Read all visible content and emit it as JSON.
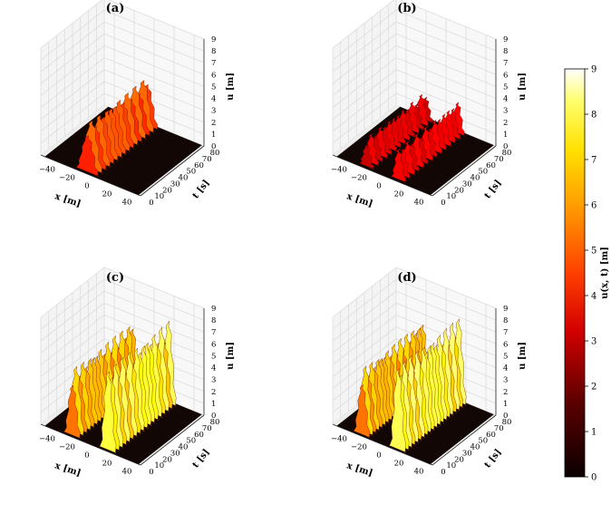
{
  "colors": {
    "background": "#ffffff",
    "grid": "#d9d9d9",
    "pane": "#f4f4f4",
    "floor": "#120704"
  },
  "colorbar": {
    "label": "u(x, t) [m]",
    "ticks": [
      "0",
      "1",
      "2",
      "3",
      "4",
      "5",
      "6",
      "7",
      "8",
      "9"
    ],
    "range": [
      0,
      9
    ],
    "colormap": "hot"
  },
  "chart_data": [
    {
      "type": "surface3d",
      "panel": "(a)",
      "title": "(a)",
      "xlabel": "x [m]",
      "ylabel": "t [s]",
      "zlabel": "u [m]",
      "xlim": [
        -50,
        50
      ],
      "ylim": [
        0,
        80
      ],
      "zlim": [
        0,
        9
      ],
      "xticks": [
        "-40",
        "-20",
        "0",
        "20",
        "40"
      ],
      "yticks": [
        "0",
        "10",
        "20",
        "30",
        "40",
        "50",
        "60",
        "70",
        "80"
      ],
      "zticks": [
        "0",
        "1",
        "2",
        "3",
        "4",
        "5",
        "6",
        "7",
        "8",
        "9"
      ],
      "waves": [
        {
          "x_center": -5,
          "width": 22,
          "amplitude": 4.0,
          "crests": 16,
          "t_range": [
            0,
            80
          ]
        }
      ]
    },
    {
      "type": "surface3d",
      "panel": "(b)",
      "title": "(b)",
      "xlabel": "x [m]",
      "ylabel": "t [s]",
      "zlabel": "u [m]",
      "xlim": [
        -50,
        50
      ],
      "ylim": [
        0,
        80
      ],
      "zlim": [
        0,
        9
      ],
      "xticks": [
        "-40",
        "-20",
        "0",
        "20",
        "40"
      ],
      "yticks": [
        "0",
        "10",
        "20",
        "30",
        "40",
        "50",
        "60",
        "70",
        "80"
      ],
      "zticks": [
        "0",
        "1",
        "2",
        "3",
        "4",
        "5",
        "6",
        "7",
        "8",
        "9"
      ],
      "waves": [
        {
          "x_center": -18,
          "width": 14,
          "amplitude": 2.4,
          "crests": 14,
          "t_range": [
            0,
            80
          ]
        },
        {
          "x_center": 14,
          "width": 14,
          "amplitude": 2.6,
          "crests": 14,
          "t_range": [
            0,
            80
          ]
        }
      ]
    },
    {
      "type": "surface3d",
      "panel": "(c)",
      "title": "(c)",
      "xlabel": "x [m]",
      "ylabel": "t [s]",
      "zlabel": "u [m]",
      "xlim": [
        -50,
        50
      ],
      "ylim": [
        0,
        80
      ],
      "zlim": [
        0,
        9
      ],
      "xticks": [
        "-40",
        "-20",
        "0",
        "20",
        "40"
      ],
      "yticks": [
        "0",
        "10",
        "20",
        "30",
        "40",
        "50",
        "60",
        "70",
        "80"
      ],
      "zticks": [
        "0",
        "1",
        "2",
        "3",
        "4",
        "5",
        "6",
        "7",
        "8",
        "9"
      ],
      "waves": [
        {
          "x_center": -20,
          "width": 16,
          "amplitude": 5.5,
          "crests": 18,
          "t_range": [
            0,
            80
          ]
        },
        {
          "x_center": 16,
          "width": 16,
          "amplitude": 6.8,
          "crests": 18,
          "t_range": [
            0,
            80
          ]
        }
      ]
    },
    {
      "type": "surface3d",
      "panel": "(d)",
      "title": "(d)",
      "xlabel": "x [m]",
      "ylabel": "t [s]",
      "zlabel": "u [m]",
      "xlim": [
        -50,
        50
      ],
      "ylim": [
        0,
        80
      ],
      "zlim": [
        0,
        9
      ],
      "xticks": [
        "-40",
        "-20",
        "0",
        "20",
        "40"
      ],
      "yticks": [
        "0",
        "10",
        "20",
        "30",
        "40",
        "50",
        "60",
        "70",
        "80"
      ],
      "zticks": [
        "0",
        "1",
        "2",
        "3",
        "4",
        "5",
        "6",
        "7",
        "8",
        "9"
      ],
      "waves": [
        {
          "x_center": -22,
          "width": 16,
          "amplitude": 5.5,
          "crests": 20,
          "t_range": [
            0,
            80
          ]
        },
        {
          "x_center": 14,
          "width": 16,
          "amplitude": 7.0,
          "crests": 20,
          "t_range": [
            0,
            80
          ]
        }
      ]
    }
  ]
}
